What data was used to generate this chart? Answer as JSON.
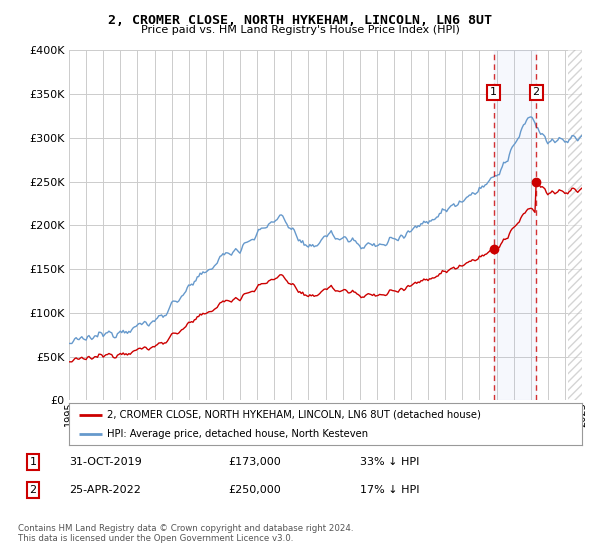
{
  "title": "2, CROMER CLOSE, NORTH HYKEHAM, LINCOLN, LN6 8UT",
  "subtitle": "Price paid vs. HM Land Registry's House Price Index (HPI)",
  "hpi_label": "HPI: Average price, detached house, North Kesteven",
  "property_label": "2, CROMER CLOSE, NORTH HYKEHAM, LINCOLN, LN6 8UT (detached house)",
  "transaction1_date": "31-OCT-2019",
  "transaction1_price": 173000,
  "transaction1_note": "33% ↓ HPI",
  "transaction2_date": "25-APR-2022",
  "transaction2_price": 250000,
  "transaction2_note": "17% ↓ HPI",
  "footer": "Contains HM Land Registry data © Crown copyright and database right 2024.\nThis data is licensed under the Open Government Licence v3.0.",
  "hpi_color": "#6699cc",
  "property_color": "#cc0000",
  "marker_box_color": "#cc0000",
  "background_color": "#ffffff",
  "grid_color": "#cccccc",
  "ylim": [
    0,
    400000
  ],
  "yticks": [
    0,
    50000,
    100000,
    150000,
    200000,
    250000,
    300000,
    350000,
    400000
  ],
  "start_year": 1995,
  "end_year": 2025,
  "transaction1_x": 2019.83,
  "transaction2_x": 2022.32
}
